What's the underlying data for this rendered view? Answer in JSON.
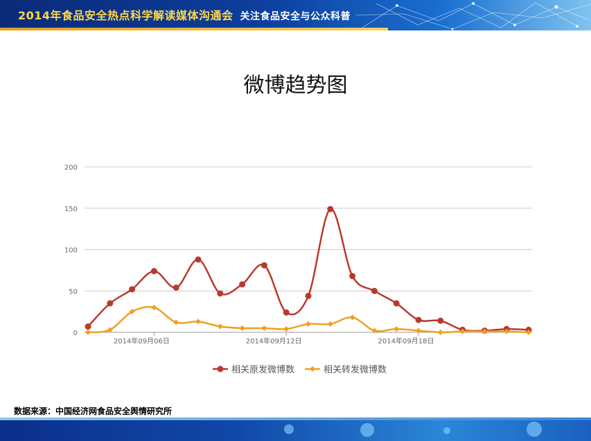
{
  "header": {
    "title": "2014年食品安全热点科学解读媒体沟通会",
    "subtitle": "关注食品安全与公众科普"
  },
  "slide": {
    "title": "微博趋势图",
    "source": "数据来源：中国经济网食品安全舆情研究所"
  },
  "colors": {
    "series1": "#b83a2e",
    "series2": "#f0a020",
    "grid": "#cccccc",
    "axis_text": "#666666"
  },
  "chart_data": {
    "type": "line",
    "title": "",
    "xlabel": "",
    "ylabel": "",
    "ylim": [
      0,
      200
    ],
    "yticks": [
      0,
      50,
      100,
      150,
      200
    ],
    "x_tick_labels": [
      {
        "index": 3,
        "label": "2014年09月06日"
      },
      {
        "index": 9,
        "label": "2014年09月12日"
      },
      {
        "index": 15,
        "label": "2014年09月18日"
      }
    ],
    "x": [
      "09-03",
      "09-04",
      "09-05",
      "09-06",
      "09-07",
      "09-08",
      "09-09",
      "09-10",
      "09-11",
      "09-12",
      "09-13",
      "09-14",
      "09-15",
      "09-16",
      "09-17",
      "09-18",
      "09-19",
      "09-20",
      "09-21",
      "09-22",
      "09-23"
    ],
    "series": [
      {
        "name": "相关原发微博数",
        "values": [
          7,
          35,
          52,
          74,
          54,
          88,
          47,
          58,
          81,
          24,
          44,
          149,
          68,
          50,
          35,
          15,
          14,
          3,
          2,
          4,
          3
        ]
      },
      {
        "name": "相关转发微博数",
        "values": [
          0,
          3,
          25,
          30,
          12,
          13,
          7,
          5,
          5,
          4,
          10,
          10,
          18,
          2,
          4,
          2,
          0,
          1,
          1,
          1,
          0
        ]
      }
    ],
    "grid": true,
    "legend_position": "bottom"
  }
}
